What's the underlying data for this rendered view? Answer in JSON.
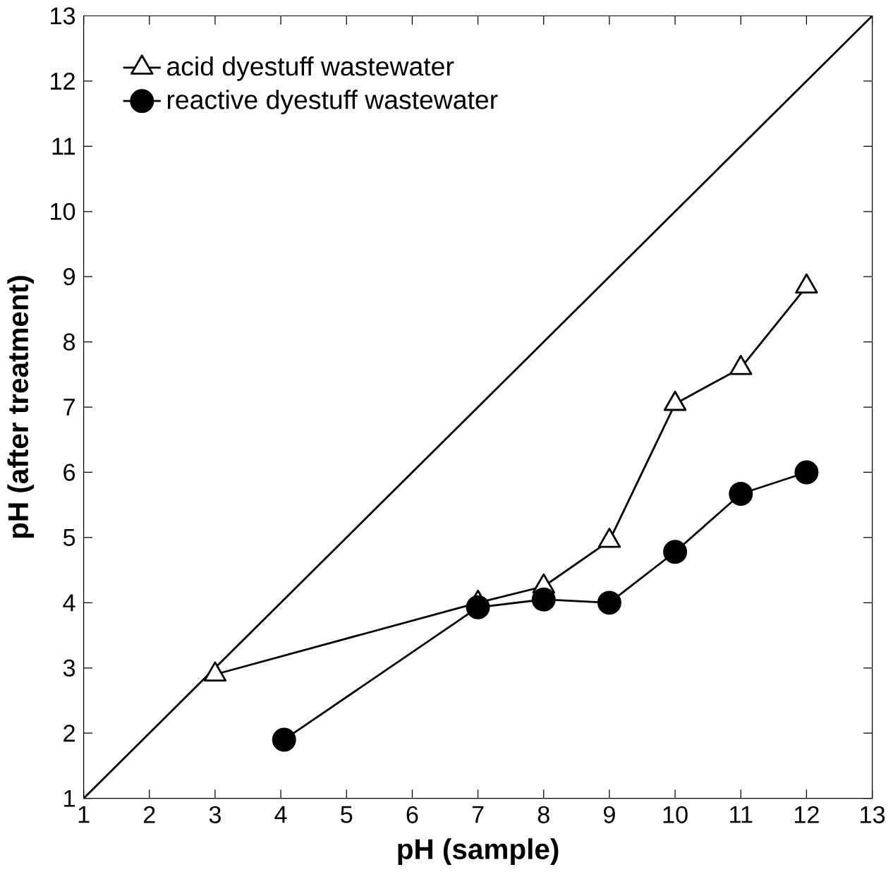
{
  "chart_data": {
    "type": "line",
    "xlabel": "pH (sample)",
    "ylabel": "pH (after treatment)",
    "xlim": [
      1,
      13
    ],
    "ylim": [
      1,
      13
    ],
    "xticks": [
      1,
      2,
      3,
      4,
      5,
      6,
      7,
      8,
      9,
      10,
      11,
      12,
      13
    ],
    "yticks": [
      1,
      2,
      3,
      4,
      5,
      6,
      7,
      8,
      9,
      10,
      11,
      12,
      13
    ],
    "grid": false,
    "legend": "top left",
    "series": [
      {
        "name": "acid dyestuff wastewater",
        "color": "#000000",
        "marker": "triangle",
        "x": [
          3,
          7,
          8,
          9,
          10,
          11,
          12
        ],
        "values": [
          2.9,
          4.0,
          4.25,
          4.95,
          7.05,
          7.6,
          8.85
        ]
      },
      {
        "name": "reactive dyestuff wastewater",
        "color": "#000000",
        "marker": "circle",
        "x": [
          4.05,
          7,
          8,
          9,
          10,
          11,
          12
        ],
        "values": [
          1.9,
          3.93,
          4.05,
          4.0,
          4.78,
          5.67,
          6.0
        ]
      },
      {
        "color": "#000000",
        "marker": "none",
        "x": [
          1,
          13
        ],
        "values": [
          1,
          13
        ]
      }
    ]
  }
}
